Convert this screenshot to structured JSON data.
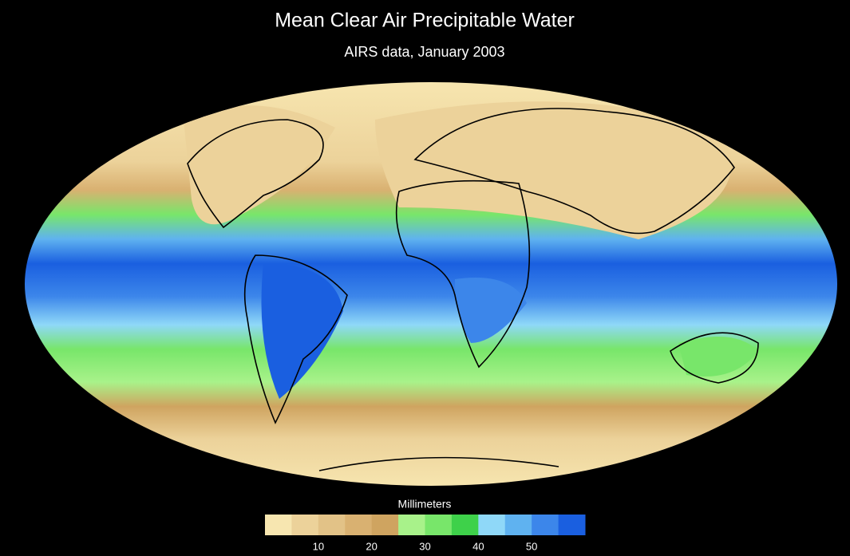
{
  "title": "Mean Clear Air Precipitable Water",
  "subtitle": "AIRS data, January 2003",
  "colorbar": {
    "label": "Millimeters",
    "range": [
      0,
      60
    ],
    "ticks": [
      10,
      20,
      30,
      40,
      50
    ],
    "colors": [
      "#f7e6b0",
      "#ecd29a",
      "#e2c287",
      "#d9b171",
      "#cfa460",
      "#a8f28a",
      "#78e66a",
      "#3ed14a",
      "#8fd8f8",
      "#5fb2f0",
      "#3c86ea",
      "#1a5fe0"
    ]
  }
}
